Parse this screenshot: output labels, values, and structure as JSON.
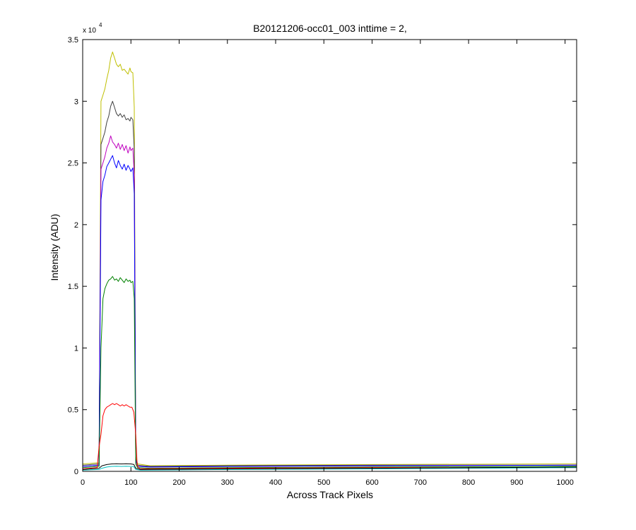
{
  "chart_data": {
    "type": "line",
    "title": "B20121206-occ01_003 inttime = 2,",
    "xlabel": "Across Track Pixels",
    "ylabel": "Intensity (ADU)",
    "y_exponent_label": "x 10",
    "y_exponent_power": "4",
    "xlim": [
      0,
      1024
    ],
    "ylim": [
      0,
      35000
    ],
    "x_ticks": [
      0,
      100,
      200,
      300,
      400,
      500,
      600,
      700,
      800,
      900,
      1000
    ],
    "x_tick_labels": [
      "0",
      "100",
      "200",
      "300",
      "400",
      "500",
      "600",
      "700",
      "800",
      "900",
      "1000"
    ],
    "y_ticks": [
      0,
      5000,
      10000,
      15000,
      20000,
      25000,
      30000,
      35000
    ],
    "y_tick_labels": [
      "0",
      "0.5",
      "1",
      "1.5",
      "2",
      "2.5",
      "3",
      "3.5"
    ],
    "grid": false,
    "legend": "none",
    "series": [
      {
        "color": "#bfbf00",
        "values": [
          [
            0,
            600
          ],
          [
            34,
            700
          ],
          [
            38,
            30000
          ],
          [
            42,
            30500
          ],
          [
            46,
            31000
          ],
          [
            50,
            31800
          ],
          [
            54,
            32500
          ],
          [
            58,
            33500
          ],
          [
            62,
            34000
          ],
          [
            66,
            33500
          ],
          [
            70,
            33000
          ],
          [
            74,
            32800
          ],
          [
            78,
            33000
          ],
          [
            82,
            32500
          ],
          [
            86,
            32600
          ],
          [
            90,
            32400
          ],
          [
            94,
            32200
          ],
          [
            98,
            32700
          ],
          [
            100,
            32400
          ],
          [
            104,
            32300
          ],
          [
            107,
            29500
          ],
          [
            110,
            1200
          ],
          [
            114,
            600
          ],
          [
            140,
            450
          ],
          [
            300,
            500
          ],
          [
            600,
            550
          ],
          [
            1024,
            600
          ]
        ]
      },
      {
        "color": "#404040",
        "values": [
          [
            0,
            500
          ],
          [
            34,
            600
          ],
          [
            38,
            26500
          ],
          [
            42,
            27000
          ],
          [
            46,
            27500
          ],
          [
            50,
            28300
          ],
          [
            54,
            28800
          ],
          [
            58,
            29600
          ],
          [
            62,
            30000
          ],
          [
            66,
            29500
          ],
          [
            70,
            29000
          ],
          [
            74,
            28800
          ],
          [
            78,
            29000
          ],
          [
            82,
            28700
          ],
          [
            86,
            28900
          ],
          [
            90,
            28500
          ],
          [
            94,
            28600
          ],
          [
            98,
            28400
          ],
          [
            100,
            28700
          ],
          [
            104,
            28500
          ],
          [
            107,
            26000
          ],
          [
            110,
            1000
          ],
          [
            114,
            500
          ],
          [
            140,
            400
          ],
          [
            300,
            450
          ],
          [
            600,
            500
          ],
          [
            1024,
            500
          ]
        ]
      },
      {
        "color": "#bf00bf",
        "values": [
          [
            0,
            400
          ],
          [
            34,
            500
          ],
          [
            38,
            24500
          ],
          [
            42,
            25000
          ],
          [
            46,
            25500
          ],
          [
            50,
            26200
          ],
          [
            54,
            26600
          ],
          [
            58,
            27200
          ],
          [
            62,
            26700
          ],
          [
            66,
            26500
          ],
          [
            70,
            26200
          ],
          [
            74,
            26600
          ],
          [
            78,
            26100
          ],
          [
            82,
            26500
          ],
          [
            86,
            26000
          ],
          [
            90,
            26400
          ],
          [
            94,
            25800
          ],
          [
            98,
            26300
          ],
          [
            100,
            26000
          ],
          [
            104,
            26200
          ],
          [
            107,
            24000
          ],
          [
            110,
            900
          ],
          [
            114,
            400
          ],
          [
            140,
            350
          ],
          [
            300,
            400
          ],
          [
            600,
            450
          ],
          [
            1024,
            500
          ]
        ]
      },
      {
        "color": "#0000ff",
        "values": [
          [
            0,
            400
          ],
          [
            34,
            500
          ],
          [
            38,
            22000
          ],
          [
            42,
            23500
          ],
          [
            46,
            24000
          ],
          [
            50,
            24700
          ],
          [
            54,
            25000
          ],
          [
            58,
            25300
          ],
          [
            62,
            25600
          ],
          [
            66,
            25000
          ],
          [
            70,
            24600
          ],
          [
            74,
            25200
          ],
          [
            78,
            24800
          ],
          [
            82,
            24500
          ],
          [
            86,
            24900
          ],
          [
            90,
            24400
          ],
          [
            94,
            24800
          ],
          [
            98,
            24500
          ],
          [
            100,
            24300
          ],
          [
            104,
            24600
          ],
          [
            107,
            22500
          ],
          [
            110,
            900
          ],
          [
            114,
            400
          ],
          [
            140,
            350
          ],
          [
            300,
            400
          ],
          [
            600,
            450
          ],
          [
            1024,
            500
          ]
        ]
      },
      {
        "color": "#008000",
        "values": [
          [
            0,
            300
          ],
          [
            34,
            400
          ],
          [
            38,
            10000
          ],
          [
            42,
            14000
          ],
          [
            46,
            14800
          ],
          [
            50,
            15200
          ],
          [
            54,
            15500
          ],
          [
            58,
            15600
          ],
          [
            62,
            15800
          ],
          [
            66,
            15500
          ],
          [
            70,
            15600
          ],
          [
            74,
            15400
          ],
          [
            78,
            15700
          ],
          [
            82,
            15500
          ],
          [
            86,
            15300
          ],
          [
            90,
            15600
          ],
          [
            94,
            15400
          ],
          [
            98,
            15500
          ],
          [
            100,
            15300
          ],
          [
            104,
            15400
          ],
          [
            107,
            14000
          ],
          [
            110,
            600
          ],
          [
            114,
            300
          ],
          [
            140,
            250
          ],
          [
            300,
            300
          ],
          [
            600,
            350
          ],
          [
            1024,
            400
          ]
        ]
      },
      {
        "color": "#ff0000",
        "values": [
          [
            0,
            200
          ],
          [
            30,
            300
          ],
          [
            34,
            2000
          ],
          [
            38,
            3000
          ],
          [
            42,
            4500
          ],
          [
            46,
            5000
          ],
          [
            50,
            5200
          ],
          [
            54,
            5300
          ],
          [
            58,
            5400
          ],
          [
            62,
            5500
          ],
          [
            66,
            5400
          ],
          [
            70,
            5500
          ],
          [
            74,
            5400
          ],
          [
            78,
            5300
          ],
          [
            82,
            5400
          ],
          [
            86,
            5300
          ],
          [
            90,
            5400
          ],
          [
            94,
            5300
          ],
          [
            98,
            5200
          ],
          [
            102,
            5200
          ],
          [
            106,
            4800
          ],
          [
            110,
            3000
          ],
          [
            113,
            500
          ],
          [
            118,
            200
          ],
          [
            300,
            250
          ],
          [
            600,
            300
          ],
          [
            1024,
            300
          ]
        ]
      },
      {
        "color": "#00bfbf",
        "values": [
          [
            0,
            100
          ],
          [
            34,
            150
          ],
          [
            40,
            250
          ],
          [
            50,
            350
          ],
          [
            60,
            400
          ],
          [
            70,
            420
          ],
          [
            80,
            400
          ],
          [
            90,
            420
          ],
          [
            100,
            400
          ],
          [
            106,
            380
          ],
          [
            110,
            150
          ],
          [
            120,
            100
          ],
          [
            300,
            150
          ],
          [
            600,
            200
          ],
          [
            1024,
            300
          ]
        ]
      },
      {
        "color": "#000000",
        "values": [
          [
            0,
            150
          ],
          [
            34,
            250
          ],
          [
            40,
            450
          ],
          [
            50,
            550
          ],
          [
            60,
            600
          ],
          [
            70,
            620
          ],
          [
            80,
            600
          ],
          [
            90,
            620
          ],
          [
            100,
            600
          ],
          [
            106,
            560
          ],
          [
            110,
            250
          ],
          [
            120,
            150
          ],
          [
            300,
            200
          ],
          [
            600,
            250
          ],
          [
            1024,
            350
          ]
        ]
      }
    ]
  }
}
